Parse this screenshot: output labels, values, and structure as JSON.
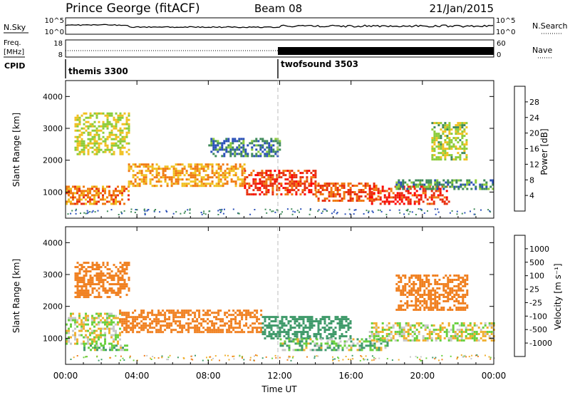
{
  "header": {
    "station": "Prince George (fitACF)",
    "beam": "Beam 08",
    "date": "21/Jan/2015"
  },
  "panels": {
    "nsky": {
      "left_label": "N.Sky",
      "right_label": "N.Search",
      "tick_top": "10^5",
      "tick_bottom": "10^0"
    },
    "freq": {
      "left_label_1": "Freq.",
      "left_label_2": "[MHz]",
      "left_tick_top": "18",
      "left_tick_bottom": "8",
      "right_label": "Nave",
      "right_tick_top": "60",
      "right_tick_bottom": "0"
    },
    "cpid": {
      "label": "CPID",
      "modes": [
        {
          "name": "themis 3300",
          "start_hour": 0
        },
        {
          "name": "twofsound 3503",
          "start_hour": 12
        }
      ]
    }
  },
  "power_colorbar": {
    "label": "Power [dB]",
    "ticks": [
      "4",
      "8",
      "12",
      "16",
      "20",
      "24",
      "28"
    ],
    "colors": [
      "#1a1aff",
      "#2a4fb8",
      "#3f8a5a",
      "#8ccc3a",
      "#f0c020",
      "#f07a10",
      "#e83010",
      "#ff0000"
    ]
  },
  "velocity_colorbar": {
    "label": "Velocity [m s⁻¹]",
    "ticks": [
      "1000",
      "500",
      "100",
      "25",
      "-25",
      "-100",
      "-500",
      "-1000"
    ],
    "colors": [
      "#2040b0",
      "#2f7fa8",
      "#3f9a6a",
      "#6ad040",
      "#c8c8c8",
      "#f0b030",
      "#f08020",
      "#f04010",
      "#ff0000"
    ]
  },
  "x_axis": {
    "label": "Time UT",
    "ticks": [
      "00:00",
      "04:00",
      "08:00",
      "12:00",
      "16:00",
      "20:00",
      "00:00"
    ]
  },
  "chart_data": [
    {
      "type": "heatmap",
      "title": "",
      "quantity": "Power",
      "xlabel": "",
      "ylabel": "Slant Range [km]",
      "xlim": [
        0,
        24
      ],
      "ylim": [
        180,
        4500
      ],
      "yticks": [
        1000,
        2000,
        3000,
        4000
      ],
      "clim": [
        0,
        30
      ],
      "colorbar_label": "Power [dB]",
      "regions": [
        {
          "t0": 0.0,
          "t1": 3.5,
          "r0": 600,
          "r1": 1200,
          "value": 22
        },
        {
          "t0": 0.5,
          "t1": 3.5,
          "r0": 2200,
          "r1": 3500,
          "value": 16
        },
        {
          "t0": 3.5,
          "t1": 10.0,
          "r0": 1200,
          "r1": 1900,
          "value": 20
        },
        {
          "t0": 8.0,
          "t1": 12.0,
          "r0": 2100,
          "r1": 2700,
          "value": 9
        },
        {
          "t0": 10.0,
          "t1": 14.0,
          "r0": 900,
          "r1": 1700,
          "value": 26
        },
        {
          "t0": 14.0,
          "t1": 17.5,
          "r0": 700,
          "r1": 1300,
          "value": 24
        },
        {
          "t0": 17.0,
          "t1": 21.5,
          "r0": 600,
          "r1": 1200,
          "value": 27
        },
        {
          "t0": 18.5,
          "t1": 24.0,
          "r0": 1100,
          "r1": 1400,
          "value": 10
        },
        {
          "t0": 20.5,
          "t1": 22.5,
          "r0": 2000,
          "r1": 3200,
          "value": 15
        }
      ]
    },
    {
      "type": "heatmap",
      "title": "",
      "quantity": "Velocity",
      "xlabel": "Time UT",
      "ylabel": "Slant Range [km]",
      "xlim": [
        0,
        24
      ],
      "ylim": [
        180,
        4500
      ],
      "yticks": [
        1000,
        2000,
        3000,
        4000
      ],
      "colorbar_label": "Velocity [m s⁻¹]",
      "regions": [
        {
          "t0": 0.0,
          "t1": 3.0,
          "r0": 800,
          "r1": 1800,
          "value": 0
        },
        {
          "t0": 0.5,
          "t1": 3.5,
          "r0": 2300,
          "r1": 3400,
          "value": -300
        },
        {
          "t0": 3.0,
          "t1": 11.0,
          "r0": 1200,
          "r1": 1900,
          "value": -400
        },
        {
          "t0": 1.0,
          "t1": 3.5,
          "r0": 600,
          "r1": 800,
          "value": 60
        },
        {
          "t0": 11.0,
          "t1": 16.0,
          "r0": 1000,
          "r1": 1700,
          "value": 300
        },
        {
          "t0": 12.0,
          "t1": 18.0,
          "r0": 600,
          "r1": 1000,
          "value": 60
        },
        {
          "t0": 17.0,
          "t1": 24.0,
          "r0": 900,
          "r1": 1500,
          "value": 0
        },
        {
          "t0": 18.5,
          "t1": 22.5,
          "r0": 1900,
          "r1": 3000,
          "value": -300
        }
      ]
    }
  ]
}
